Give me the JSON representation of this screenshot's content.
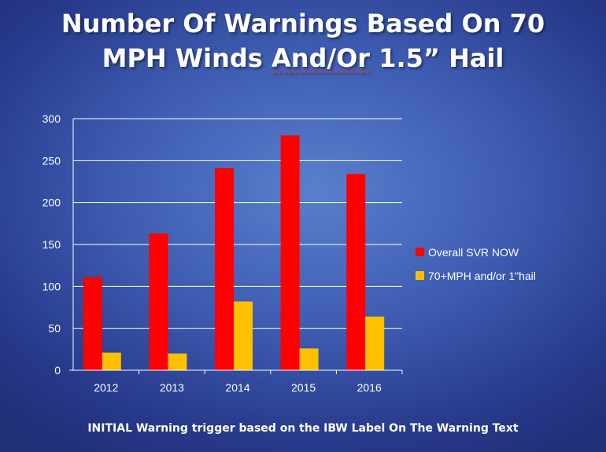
{
  "title": {
    "line1": "Number Of Warnings Based On 70",
    "line2_pre": "MPH Winds ",
    "line2_mid": "And/Or",
    "line2_post": " 1.5” Hail"
  },
  "caption": "INITIAL Warning trigger based on the IBW Label On The Warning Text",
  "chart_data": {
    "type": "bar",
    "categories": [
      "2012",
      "2013",
      "2014",
      "2015",
      "2016"
    ],
    "series": [
      {
        "name": "Overall SVR NOW",
        "values": [
          111,
          163,
          241,
          280,
          234
        ],
        "color": "#ff0000"
      },
      {
        "name": "70+MPH and/or 1\"hail",
        "values": [
          21,
          20,
          82,
          26,
          64
        ],
        "color": "#ffc000"
      }
    ],
    "ylim": [
      0,
      300
    ],
    "yticks": [
      0,
      50,
      100,
      150,
      200,
      250,
      300
    ],
    "grid": true,
    "legend_position": "right",
    "colors": {
      "axis_text": "#ffffff",
      "grid": "#ffffff"
    }
  }
}
